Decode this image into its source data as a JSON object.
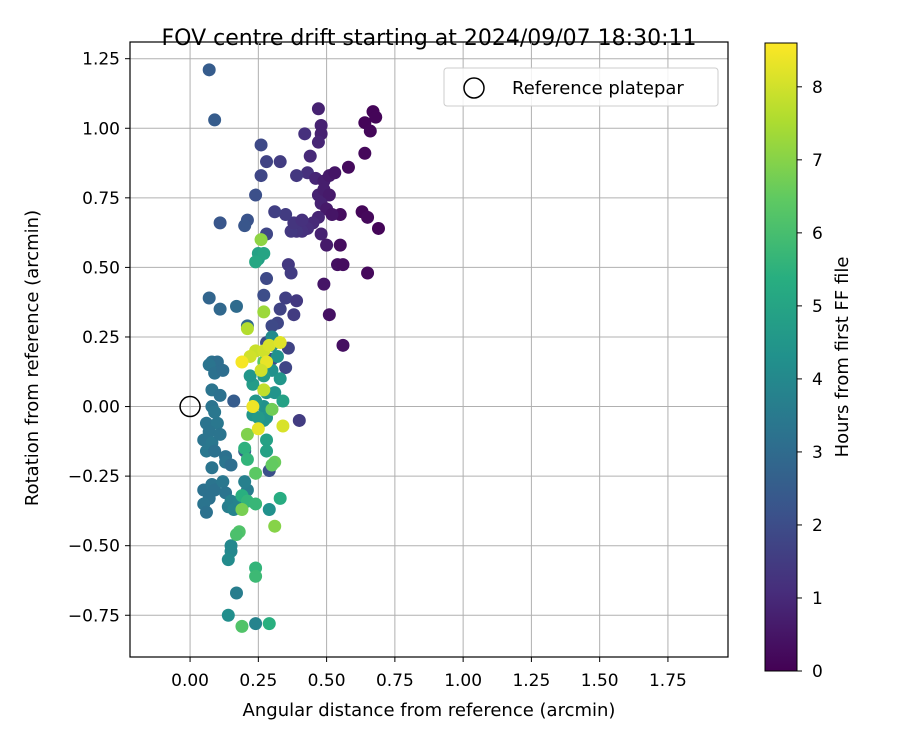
{
  "chart_data": {
    "type": "scatter",
    "title": "FOV centre drift starting at 2024/09/07 18:30:11",
    "xlabel": "Angular distance from reference (arcmin)",
    "ylabel": "Rotation from reference (arcmin)",
    "xlim": [
      -0.22,
      1.97
    ],
    "ylim": [
      -0.9,
      1.31
    ],
    "xticks": [
      0.0,
      0.25,
      0.5,
      0.75,
      1.0,
      1.25,
      1.5,
      1.75
    ],
    "xtick_labels": [
      "0.00",
      "0.25",
      "0.50",
      "0.75",
      "1.00",
      "1.25",
      "1.50",
      "1.75"
    ],
    "yticks": [
      -0.75,
      -0.5,
      -0.25,
      0.0,
      0.25,
      0.5,
      0.75,
      1.0,
      1.25
    ],
    "ytick_labels": [
      "−0.75",
      "−0.50",
      "−0.25",
      "0.00",
      "0.25",
      "0.50",
      "0.75",
      "1.00",
      "1.25"
    ],
    "grid": true,
    "legend": {
      "placement": "top-right",
      "entries": [
        "Reference platepar"
      ]
    },
    "reference_point": {
      "x": 0.0,
      "y": 0.0
    },
    "colorbar": {
      "label": "Hours from first FF file",
      "colormap": "viridis",
      "range": [
        0,
        8.6
      ],
      "ticks": [
        0,
        1,
        2,
        3,
        4,
        5,
        6,
        7,
        8
      ],
      "tick_labels": [
        "0",
        "1",
        "2",
        "3",
        "4",
        "5",
        "6",
        "7",
        "8"
      ]
    },
    "points": [
      [
        0.67,
        1.06,
        0.1
      ],
      [
        0.68,
        1.04,
        0.1
      ],
      [
        0.64,
        1.02,
        0.1
      ],
      [
        0.66,
        0.99,
        0.15
      ],
      [
        0.64,
        0.91,
        0.2
      ],
      [
        0.58,
        0.86,
        0.25
      ],
      [
        0.63,
        0.7,
        0.15
      ],
      [
        0.65,
        0.68,
        0.2
      ],
      [
        0.69,
        0.64,
        0.1
      ],
      [
        0.55,
        0.69,
        0.3
      ],
      [
        0.55,
        0.58,
        0.3
      ],
      [
        0.54,
        0.51,
        0.35
      ],
      [
        0.56,
        0.51,
        0.3
      ],
      [
        0.65,
        0.48,
        0.2
      ],
      [
        0.56,
        0.22,
        0.35
      ],
      [
        0.51,
        0.33,
        0.4
      ],
      [
        0.49,
        0.44,
        0.5
      ],
      [
        0.47,
        1.07,
        0.8
      ],
      [
        0.48,
        1.01,
        0.8
      ],
      [
        0.48,
        0.98,
        0.8
      ],
      [
        0.47,
        0.95,
        0.9
      ],
      [
        0.42,
        0.98,
        1.2
      ],
      [
        0.44,
        0.9,
        1.0
      ],
      [
        0.43,
        0.84,
        1.2
      ],
      [
        0.46,
        0.82,
        0.9
      ],
      [
        0.49,
        0.81,
        0.7
      ],
      [
        0.51,
        0.83,
        0.6
      ],
      [
        0.53,
        0.84,
        0.5
      ],
      [
        0.47,
        0.76,
        0.8
      ],
      [
        0.49,
        0.78,
        0.7
      ],
      [
        0.51,
        0.76,
        0.6
      ],
      [
        0.48,
        0.73,
        0.8
      ],
      [
        0.5,
        0.71,
        0.6
      ],
      [
        0.52,
        0.69,
        0.5
      ],
      [
        0.47,
        0.68,
        0.9
      ],
      [
        0.45,
        0.66,
        1.0
      ],
      [
        0.43,
        0.64,
        1.1
      ],
      [
        0.41,
        0.63,
        1.2
      ],
      [
        0.39,
        0.63,
        1.3
      ],
      [
        0.37,
        0.63,
        1.4
      ],
      [
        0.48,
        0.62,
        0.8
      ],
      [
        0.5,
        0.58,
        0.6
      ],
      [
        0.38,
        0.66,
        1.3
      ],
      [
        0.41,
        0.67,
        1.2
      ],
      [
        0.35,
        0.69,
        1.5
      ],
      [
        0.31,
        0.7,
        1.6
      ],
      [
        0.28,
        0.88,
        1.7
      ],
      [
        0.33,
        0.88,
        1.5
      ],
      [
        0.26,
        0.83,
        1.8
      ],
      [
        0.26,
        0.94,
        1.9
      ],
      [
        0.39,
        0.83,
        1.4
      ],
      [
        0.36,
        0.51,
        1.4
      ],
      [
        0.37,
        0.48,
        1.5
      ],
      [
        0.28,
        0.62,
        1.8
      ],
      [
        0.27,
        0.4,
        2.0
      ],
      [
        0.28,
        0.46,
        1.9
      ],
      [
        0.35,
        0.39,
        1.6
      ],
      [
        0.39,
        0.38,
        1.4
      ],
      [
        0.38,
        0.33,
        1.5
      ],
      [
        0.33,
        0.35,
        1.7
      ],
      [
        0.32,
        0.3,
        1.8
      ],
      [
        0.36,
        0.21,
        1.7
      ],
      [
        0.35,
        0.14,
        1.8
      ],
      [
        0.3,
        0.17,
        2.0
      ],
      [
        0.28,
        0.23,
        2.0
      ],
      [
        0.3,
        0.29,
        1.9
      ],
      [
        0.4,
        -0.05,
        1.5
      ],
      [
        0.24,
        0.76,
        2.1
      ],
      [
        0.21,
        0.67,
        2.2
      ],
      [
        0.2,
        0.65,
        2.3
      ],
      [
        0.11,
        0.66,
        2.3
      ],
      [
        0.07,
        1.21,
        2.5
      ],
      [
        0.09,
        1.03,
        2.5
      ],
      [
        0.07,
        0.39,
        2.8
      ],
      [
        0.11,
        0.35,
        2.9
      ],
      [
        0.17,
        0.36,
        3.0
      ],
      [
        0.21,
        0.29,
        2.9
      ],
      [
        0.16,
        0.02,
        2.5
      ],
      [
        0.2,
        -0.16,
        2.6
      ],
      [
        0.29,
        -0.23,
        2.1
      ],
      [
        0.08,
        0.16,
        3.2
      ],
      [
        0.1,
        0.16,
        3.1
      ],
      [
        0.07,
        0.15,
        3.3
      ],
      [
        0.09,
        0.12,
        3.2
      ],
      [
        0.12,
        0.13,
        3.1
      ],
      [
        0.08,
        0.06,
        3.3
      ],
      [
        0.11,
        0.04,
        3.2
      ],
      [
        0.08,
        0.0,
        3.3
      ],
      [
        0.09,
        -0.02,
        3.4
      ],
      [
        0.06,
        -0.06,
        3.3
      ],
      [
        0.1,
        -0.06,
        3.4
      ],
      [
        0.07,
        -0.09,
        3.3
      ],
      [
        0.05,
        -0.12,
        3.3
      ],
      [
        0.08,
        -0.13,
        3.4
      ],
      [
        0.11,
        -0.1,
        3.3
      ],
      [
        0.06,
        -0.16,
        3.4
      ],
      [
        0.09,
        -0.16,
        3.2
      ],
      [
        0.13,
        -0.18,
        3.2
      ],
      [
        0.13,
        -0.2,
        3.3
      ],
      [
        0.08,
        -0.22,
        3.3
      ],
      [
        0.15,
        -0.21,
        3.1
      ],
      [
        0.05,
        -0.3,
        3.2
      ],
      [
        0.08,
        -0.28,
        3.3
      ],
      [
        0.09,
        -0.3,
        3.2
      ],
      [
        0.12,
        -0.27,
        3.4
      ],
      [
        0.13,
        -0.31,
        3.3
      ],
      [
        0.07,
        -0.33,
        3.2
      ],
      [
        0.05,
        -0.35,
        3.3
      ],
      [
        0.06,
        -0.38,
        3.2
      ],
      [
        0.14,
        -0.36,
        3.6
      ],
      [
        0.15,
        -0.34,
        3.7
      ],
      [
        0.16,
        -0.37,
        3.8
      ],
      [
        0.21,
        -0.3,
        3.6
      ],
      [
        0.18,
        -0.34,
        3.8
      ],
      [
        0.2,
        -0.27,
        3.7
      ],
      [
        0.15,
        -0.5,
        4.0
      ],
      [
        0.15,
        -0.52,
        4.0
      ],
      [
        0.14,
        -0.55,
        4.1
      ],
      [
        0.17,
        -0.67,
        3.6
      ],
      [
        0.14,
        -0.75,
        4.2
      ],
      [
        0.24,
        -0.78,
        3.8
      ],
      [
        0.3,
        0.25,
        4.1
      ],
      [
        0.3,
        0.22,
        4.2
      ],
      [
        0.32,
        0.18,
        4.3
      ],
      [
        0.3,
        0.13,
        4.3
      ],
      [
        0.33,
        0.1,
        4.5
      ],
      [
        0.31,
        0.05,
        4.4
      ],
      [
        0.28,
        0.05,
        4.4
      ],
      [
        0.27,
        0.0,
        4.3
      ],
      [
        0.24,
        0.02,
        4.5
      ],
      [
        0.28,
        -0.04,
        4.4
      ],
      [
        0.27,
        -0.05,
        4.4
      ],
      [
        0.23,
        -0.03,
        4.5
      ],
      [
        0.25,
        -0.04,
        4.6
      ],
      [
        0.23,
        0.08,
        4.7
      ],
      [
        0.27,
        0.11,
        4.7
      ],
      [
        0.22,
        0.11,
        4.5
      ],
      [
        0.34,
        0.02,
        4.9
      ],
      [
        0.28,
        -0.12,
        4.9
      ],
      [
        0.28,
        -0.16,
        4.9
      ],
      [
        0.29,
        -0.37,
        4.3
      ],
      [
        0.25,
        0.53,
        4.8
      ],
      [
        0.25,
        0.55,
        4.9
      ],
      [
        0.27,
        0.55,
        5.0
      ],
      [
        0.24,
        0.52,
        5.1
      ],
      [
        0.2,
        -0.15,
        5.5
      ],
      [
        0.21,
        -0.19,
        5.6
      ],
      [
        0.19,
        -0.32,
        5.4
      ],
      [
        0.21,
        -0.34,
        5.6
      ],
      [
        0.24,
        -0.35,
        5.7
      ],
      [
        0.33,
        -0.33,
        5.3
      ],
      [
        0.29,
        -0.78,
        5.4
      ],
      [
        0.24,
        -0.58,
        5.6
      ],
      [
        0.24,
        -0.61,
        5.8
      ],
      [
        0.18,
        -0.45,
        6.2
      ],
      [
        0.17,
        -0.46,
        6.1
      ],
      [
        0.19,
        -0.79,
        6.2
      ],
      [
        0.24,
        -0.24,
        6.4
      ],
      [
        0.31,
        -0.2,
        6.6
      ],
      [
        0.3,
        -0.21,
        6.5
      ],
      [
        0.3,
        -0.01,
        6.7
      ],
      [
        0.27,
        0.16,
        6.4
      ],
      [
        0.21,
        -0.1,
        6.9
      ],
      [
        0.19,
        -0.37,
        6.8
      ],
      [
        0.31,
        -0.43,
        7.0
      ],
      [
        0.26,
        0.6,
        7.1
      ],
      [
        0.27,
        0.34,
        7.3
      ],
      [
        0.21,
        0.28,
        7.6
      ],
      [
        0.24,
        0.2,
        7.9
      ],
      [
        0.27,
        0.2,
        8.0
      ],
      [
        0.29,
        0.22,
        8.1
      ],
      [
        0.33,
        0.23,
        8.2
      ],
      [
        0.22,
        0.18,
        8.0
      ],
      [
        0.19,
        0.16,
        8.5
      ],
      [
        0.28,
        0.16,
        8.3
      ],
      [
        0.26,
        0.13,
        8.0
      ],
      [
        0.27,
        0.06,
        7.8
      ],
      [
        0.23,
        0.0,
        8.4
      ],
      [
        0.25,
        -0.08,
        8.3
      ],
      [
        0.34,
        -0.07,
        8.1
      ]
    ]
  }
}
